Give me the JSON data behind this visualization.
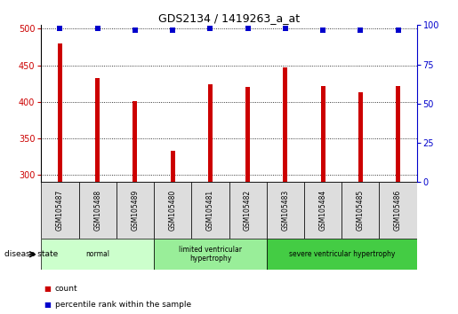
{
  "title": "GDS2134 / 1419263_a_at",
  "samples": [
    "GSM105487",
    "GSM105488",
    "GSM105489",
    "GSM105480",
    "GSM105481",
    "GSM105482",
    "GSM105483",
    "GSM105484",
    "GSM105485",
    "GSM105486"
  ],
  "bar_values": [
    480,
    432,
    401,
    333,
    424,
    420,
    447,
    422,
    413,
    421
  ],
  "percentile_values": [
    98,
    98,
    97,
    97,
    98,
    98,
    98,
    97,
    97,
    97
  ],
  "bar_color": "#cc0000",
  "dot_color": "#0000cc",
  "ylim_left": [
    290,
    505
  ],
  "ylim_right": [
    0,
    100
  ],
  "yticks_left": [
    300,
    350,
    400,
    450,
    500
  ],
  "yticks_right": [
    0,
    25,
    50,
    75,
    100
  ],
  "groups": [
    {
      "label": "normal",
      "start": 0,
      "end": 3,
      "color": "#ccffcc"
    },
    {
      "label": "limited ventricular\nhypertrophy",
      "start": 3,
      "end": 6,
      "color": "#99ee99"
    },
    {
      "label": "severe ventricular hypertrophy",
      "start": 6,
      "end": 10,
      "color": "#44cc44"
    }
  ],
  "disease_state_label": "disease state",
  "legend_items": [
    {
      "label": "count",
      "color": "#cc0000"
    },
    {
      "label": "percentile rank within the sample",
      "color": "#0000cc"
    }
  ],
  "tick_label_color_left": "#cc0000",
  "tick_label_color_right": "#0000cc",
  "bar_width": 0.12,
  "dot_size": 25,
  "grid_color": "#000000",
  "sample_box_color": "#dddddd",
  "spine_color": "#000000"
}
